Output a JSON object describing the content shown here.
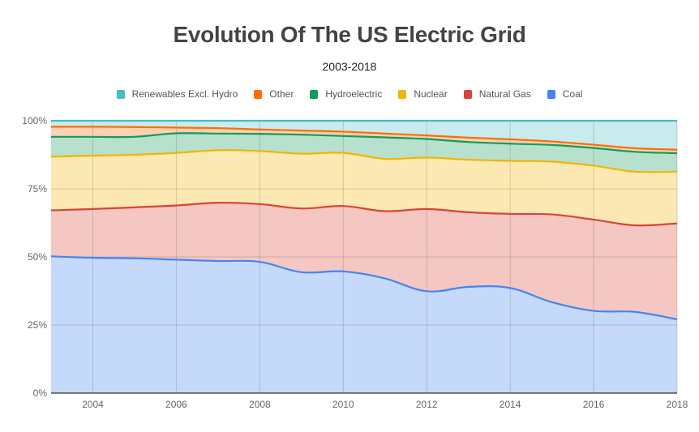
{
  "chart_data": {
    "type": "area",
    "stacked": "percent",
    "title": "Evolution Of The US Electric Grid",
    "subtitle": "2003-2018",
    "xlabel": "",
    "ylabel": "",
    "x": [
      2003,
      2004,
      2005,
      2006,
      2007,
      2008,
      2009,
      2010,
      2011,
      2012,
      2013,
      2014,
      2015,
      2016,
      2017,
      2018
    ],
    "x_ticks": [
      "2004",
      "2006",
      "2008",
      "2010",
      "2012",
      "2014",
      "2016",
      "2018"
    ],
    "x_tick_values": [
      2004,
      2006,
      2008,
      2010,
      2012,
      2014,
      2016,
      2018
    ],
    "xlim": [
      2003,
      2018
    ],
    "ylim": [
      0,
      100
    ],
    "y_ticks": [
      "0%",
      "25%",
      "50%",
      "75%",
      "100%"
    ],
    "y_tick_values": [
      0,
      25,
      50,
      75,
      100
    ],
    "grid": true,
    "legend_position": "top",
    "series": [
      {
        "name": "Coal",
        "color": "#4285f4",
        "fill": "#c5d9fb",
        "values": [
          50.2,
          49.7,
          49.5,
          49.0,
          48.5,
          48.2,
          44.4,
          44.7,
          42.1,
          37.4,
          39.0,
          38.6,
          33.4,
          30.2,
          29.8,
          27.1
        ]
      },
      {
        "name": "Natural Gas",
        "color": "#db4437",
        "fill": "#f4c7c3",
        "values": [
          16.9,
          17.9,
          18.7,
          19.9,
          21.4,
          21.2,
          23.4,
          24.0,
          24.7,
          30.2,
          27.4,
          27.2,
          32.2,
          33.5,
          31.8,
          35.2
        ]
      },
      {
        "name": "Nuclear",
        "color": "#f4b400",
        "fill": "#fce8b2",
        "values": [
          19.7,
          19.6,
          19.3,
          19.3,
          19.3,
          19.5,
          20.1,
          19.5,
          19.2,
          18.9,
          19.3,
          19.5,
          19.4,
          19.8,
          19.7,
          19.0
        ]
      },
      {
        "name": "Hydroelectric",
        "color": "#0f9d58",
        "fill": "#b7e1cd",
        "values": [
          7.3,
          6.9,
          6.6,
          7.2,
          6.1,
          6.3,
          7.0,
          6.2,
          7.9,
          6.8,
          6.5,
          6.3,
          6.1,
          6.5,
          7.3,
          6.8
        ]
      },
      {
        "name": "Other",
        "color": "#ff6d00",
        "fill": "#ffd0b2",
        "values": [
          3.7,
          3.7,
          3.6,
          2.1,
          2.0,
          1.6,
          1.5,
          1.6,
          1.4,
          1.3,
          1.6,
          1.6,
          1.3,
          1.2,
          1.3,
          1.3
        ]
      },
      {
        "name": "Renewables Excl. Hydro",
        "color": "#46bdc6",
        "fill": "#c8ebee",
        "values": [
          2.2,
          2.2,
          2.3,
          2.5,
          2.7,
          3.2,
          3.6,
          4.0,
          4.7,
          5.4,
          6.2,
          6.8,
          7.6,
          8.8,
          10.1,
          10.6
        ]
      }
    ],
    "legend_order": [
      "Renewables Excl. Hydro",
      "Other",
      "Hydroelectric",
      "Nuclear",
      "Natural Gas",
      "Coal"
    ]
  }
}
